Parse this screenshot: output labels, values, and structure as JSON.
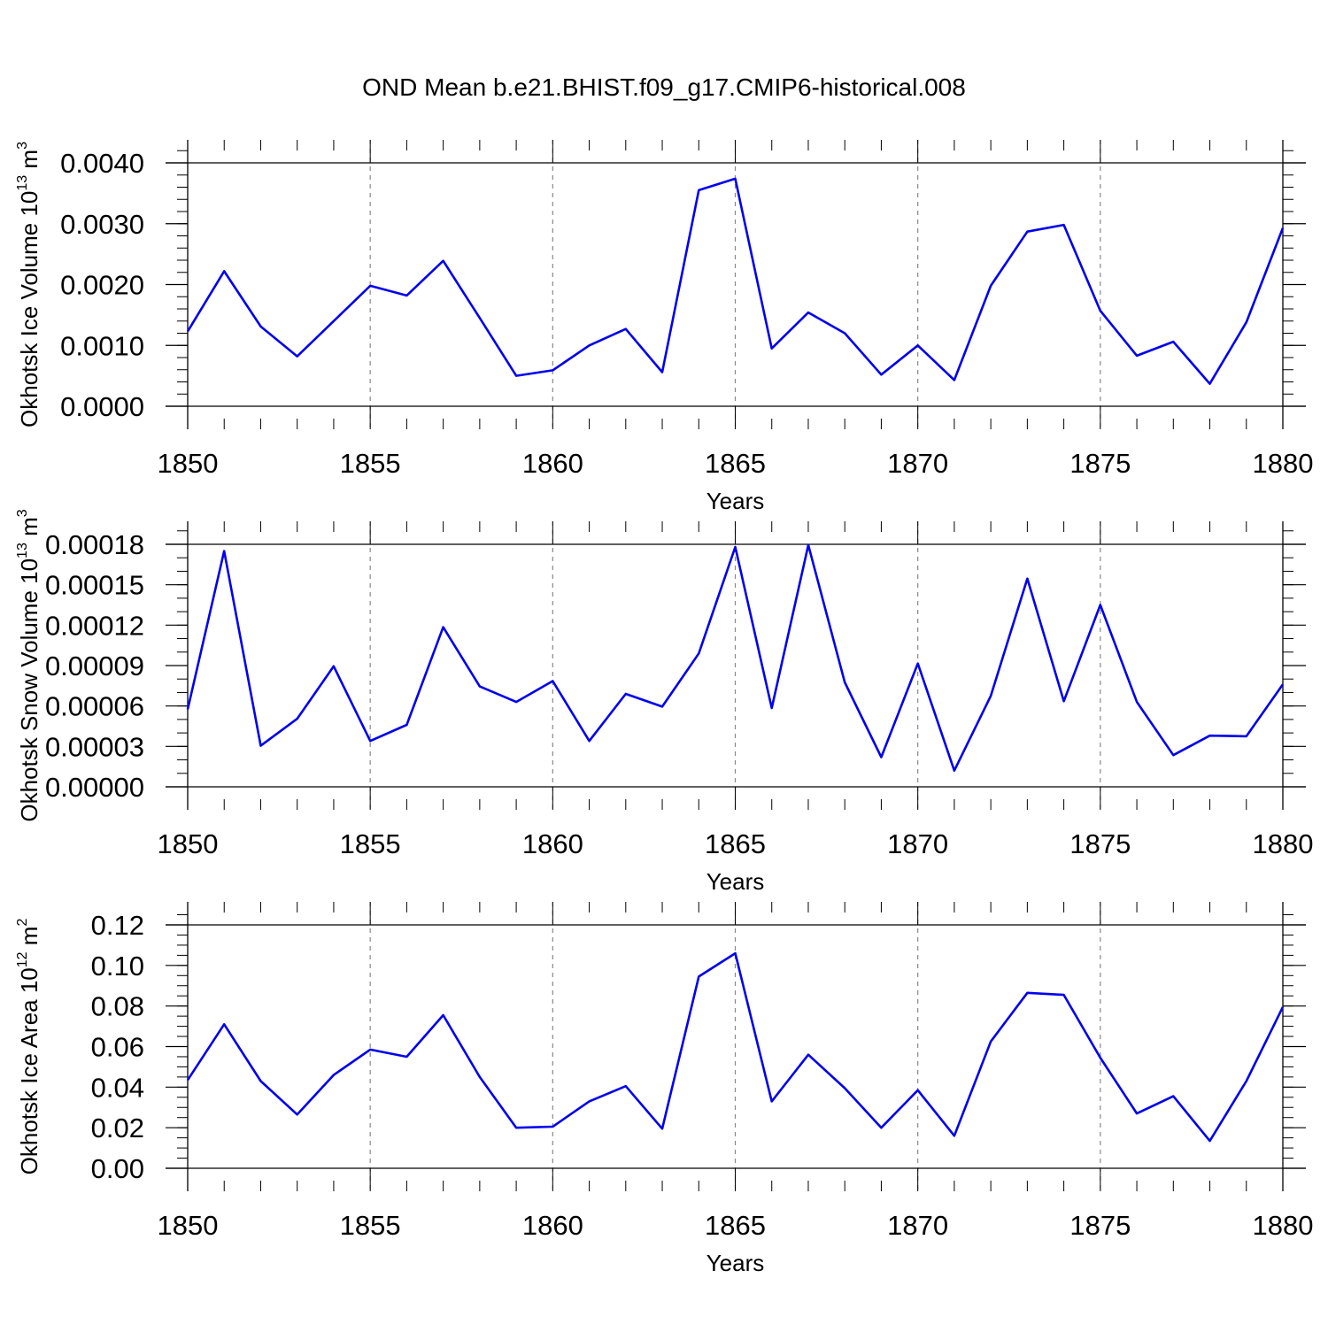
{
  "figure_title": "OND Mean b.e21.BHIST.f09_g17.CMIP6-historical.008",
  "colors": {
    "series": "#0000ee",
    "axis": "#000000",
    "grid": "#888888"
  },
  "chart_data": [
    {
      "type": "line",
      "title": "",
      "xlabel": "Years",
      "ylabel": {
        "main": "Okhotsk Ice Volume 10",
        "exponent": "13",
        "unit_base": "m",
        "unit_exponent": "3"
      },
      "xlim": [
        1850,
        1880
      ],
      "ylim": [
        0,
        0.004
      ],
      "x_ticks": [
        1850,
        1855,
        1860,
        1865,
        1870,
        1875,
        1880
      ],
      "x_tick_labels": [
        "1850",
        "1855",
        "1860",
        "1865",
        "1870",
        "1875",
        "1880"
      ],
      "y_ticks": [
        0,
        0.001,
        0.002,
        0.003,
        0.004
      ],
      "y_tick_labels": [
        "0.0000",
        "0.0010",
        "0.0020",
        "0.0030",
        "0.0040"
      ],
      "y_minor_step": 0.0002,
      "grid": "vertical dashed at major x ticks",
      "series": [
        {
          "x": [
            1850,
            1851,
            1852,
            1853,
            1854,
            1855,
            1856,
            1857,
            1858,
            1859,
            1860,
            1861,
            1862,
            1863,
            1864,
            1865,
            1866,
            1867,
            1868,
            1869,
            1870,
            1871,
            1872,
            1873,
            1874,
            1875,
            1876,
            1877,
            1878,
            1879,
            1880
          ],
          "values": [
            0.00123,
            0.00222,
            0.00131,
            0.00082,
            0.0014,
            0.00198,
            0.00182,
            0.00239,
            0.00145,
            0.0005,
            0.00059,
            0.001,
            0.00127,
            0.00056,
            0.00355,
            0.00374,
            0.00095,
            0.00154,
            0.0012,
            0.00052,
            0.001,
            0.00043,
            0.00198,
            0.00287,
            0.00298,
            0.00157,
            0.00083,
            0.00106,
            0.00037,
            0.00138,
            0.00293
          ]
        }
      ]
    },
    {
      "type": "line",
      "title": "",
      "xlabel": "Years",
      "ylabel": {
        "main": "Okhotsk Snow Volume 10",
        "exponent": "13",
        "unit_base": "m",
        "unit_exponent": "3"
      },
      "xlim": [
        1850,
        1880
      ],
      "ylim": [
        0,
        0.00018
      ],
      "x_ticks": [
        1850,
        1855,
        1860,
        1865,
        1870,
        1875,
        1880
      ],
      "x_tick_labels": [
        "1850",
        "1855",
        "1860",
        "1865",
        "1870",
        "1875",
        "1880"
      ],
      "y_ticks": [
        0,
        3e-05,
        6e-05,
        9e-05,
        0.00012,
        0.00015,
        0.00018
      ],
      "y_tick_labels": [
        "0.00000",
        "0.00003",
        "0.00006",
        "0.00009",
        "0.00012",
        "0.00015",
        "0.00018"
      ],
      "y_minor_step": 1e-05,
      "grid": "vertical dashed at major x ticks",
      "series": [
        {
          "x": [
            1850,
            1851,
            1852,
            1853,
            1854,
            1855,
            1856,
            1857,
            1858,
            1859,
            1860,
            1861,
            1862,
            1863,
            1864,
            1865,
            1866,
            1867,
            1868,
            1869,
            1870,
            1871,
            1872,
            1873,
            1874,
            1875,
            1876,
            1877,
            1878,
            1879,
            1880
          ],
          "values": [
            5.75e-05,
            0.000175,
            3.05e-05,
            5.05e-05,
            8.95e-05,
            3.4e-05,
            4.6e-05,
            0.0001185,
            7.45e-05,
            6.3e-05,
            7.85e-05,
            3.4e-05,
            6.9e-05,
            5.95e-05,
            9.9e-05,
            0.000178,
            5.85e-05,
            0.0001795,
            7.75e-05,
            2.2e-05,
            9.15e-05,
            1.2e-05,
            6.75e-05,
            0.0001545,
            6.35e-05,
            0.000135,
            6.3e-05,
            2.35e-05,
            3.8e-05,
            3.75e-05,
            7.6e-05
          ]
        }
      ]
    },
    {
      "type": "line",
      "title": "",
      "xlabel": "Years",
      "ylabel": {
        "main": "Okhotsk Ice Area 10",
        "exponent": "12",
        "unit_base": "m",
        "unit_exponent": "2"
      },
      "xlim": [
        1850,
        1880
      ],
      "ylim": [
        0,
        0.12
      ],
      "x_ticks": [
        1850,
        1855,
        1860,
        1865,
        1870,
        1875,
        1880
      ],
      "x_tick_labels": [
        "1850",
        "1855",
        "1860",
        "1865",
        "1870",
        "1875",
        "1880"
      ],
      "y_ticks": [
        0,
        0.02,
        0.04,
        0.06,
        0.08,
        0.1,
        0.12
      ],
      "y_tick_labels": [
        "0.00",
        "0.02",
        "0.04",
        "0.06",
        "0.08",
        "0.10",
        "0.12"
      ],
      "y_minor_step": 0.005,
      "grid": "vertical dashed at major x ticks",
      "series": [
        {
          "x": [
            1850,
            1851,
            1852,
            1853,
            1854,
            1855,
            1856,
            1857,
            1858,
            1859,
            1860,
            1861,
            1862,
            1863,
            1864,
            1865,
            1866,
            1867,
            1868,
            1869,
            1870,
            1871,
            1872,
            1873,
            1874,
            1875,
            1876,
            1877,
            1878,
            1879,
            1880
          ],
          "values": [
            0.0435,
            0.071,
            0.043,
            0.0265,
            0.046,
            0.0585,
            0.055,
            0.0755,
            0.045,
            0.02,
            0.0205,
            0.033,
            0.0405,
            0.0195,
            0.0945,
            0.106,
            0.033,
            0.056,
            0.0395,
            0.02,
            0.0385,
            0.016,
            0.0625,
            0.0865,
            0.0855,
            0.0545,
            0.027,
            0.0355,
            0.0135,
            0.043,
            0.0795
          ]
        }
      ]
    }
  ]
}
